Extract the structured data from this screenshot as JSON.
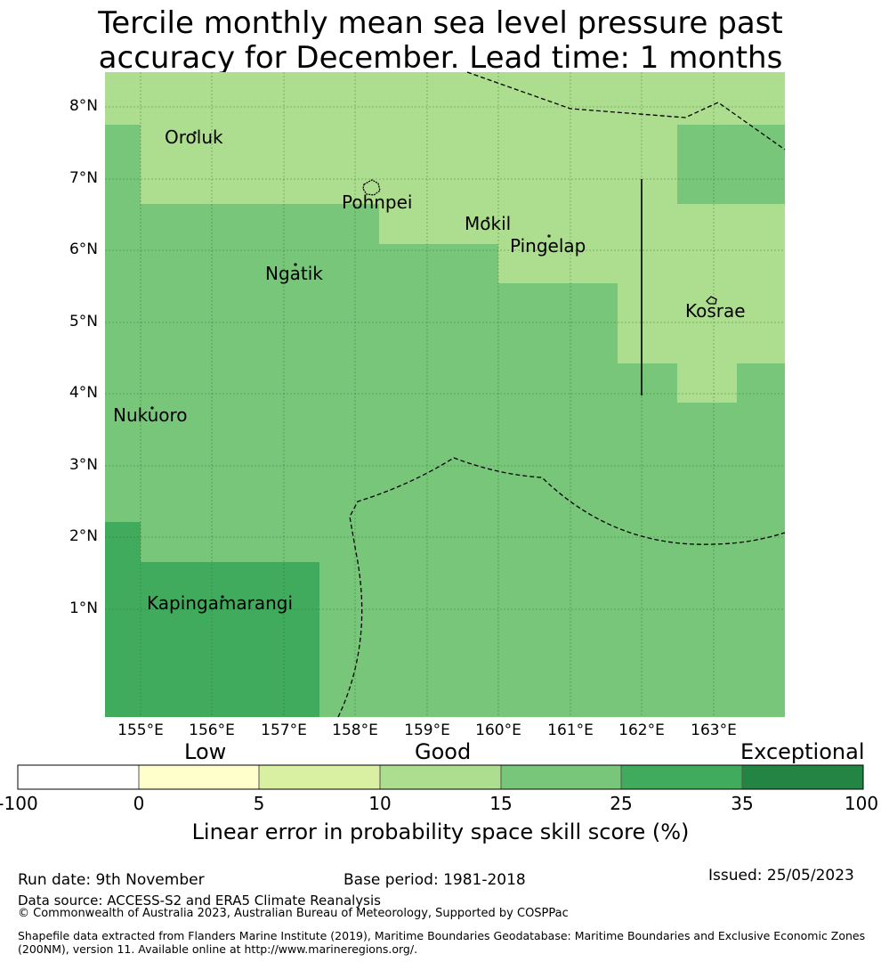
{
  "title": {
    "line1": "Tercile monthly mean sea level pressure past",
    "line2": "accuracy for December. Lead time: 1 months"
  },
  "map": {
    "lat_labels": [
      "8°N",
      "7°N",
      "6°N",
      "5°N",
      "4°N",
      "3°N",
      "2°N",
      "1°N"
    ],
    "lon_labels": [
      "155°E",
      "156°E",
      "157°E",
      "158°E",
      "159°E",
      "160°E",
      "161°E",
      "162°E",
      "163°E"
    ],
    "places": [
      "Oroluk",
      "Pohnpei",
      "Mokil",
      "Pingelap",
      "Ngatik",
      "Kosrae",
      "Nukuoro",
      "Kapingamarangi"
    ]
  },
  "colorbar": {
    "category_words": [
      "Low",
      "Good",
      "Exceptional"
    ],
    "ticks": [
      "-100",
      "0",
      "5",
      "10",
      "15",
      "25",
      "35",
      "100"
    ],
    "colors": [
      "#ffffff",
      "#ffffcc",
      "#d9f0a3",
      "#addd8e",
      "#78c679",
      "#41ab5d",
      "#238443"
    ],
    "label": "Linear error in probability space skill score (%)"
  },
  "footer": {
    "run_date": "Run date: 9th November",
    "base_period": "Base period: 1981-2018",
    "issued": "Issued: 25/05/2023",
    "data_source": "Data source: ACCESS-S2 and ERA5 Climate Reanalysis",
    "copyright": "© Commonwealth of Australia 2023, Australian Bureau of Meteorology, Supported by COSPPac",
    "shapefile_line1": "Shapefile data extracted from Flanders Marine Institute (2019), Maritime Boundaries Geodatabase: Maritime Boundaries and Exclusive Economic Zones",
    "shapefile_line2": "(200NM), version 11. Available online at http://www.marineregions.org/."
  }
}
